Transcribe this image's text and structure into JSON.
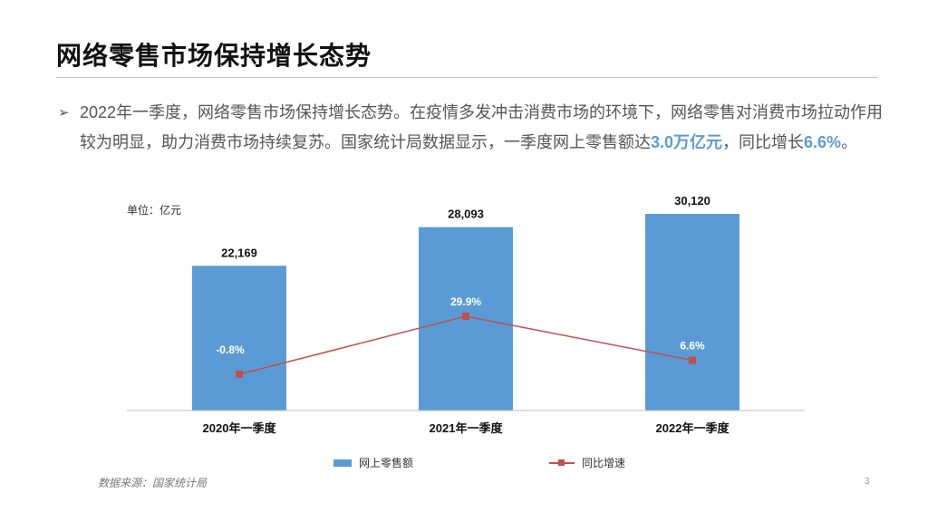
{
  "slide": {
    "title": "网络零售市场保持增长态势",
    "bullet_marker": "➢",
    "bullet_part1": "2022年一季度，网络零售市场保持增长态势。在疫情多发冲击消费市场的环境下，网络零售对消费市场拉动作用较为明显，助力消费市场持续复苏。国家统计局数据显示，一季度网上零售额达",
    "highlight1": "3.0万亿元",
    "bullet_part2": "，同比增长",
    "highlight2": "6.6%",
    "bullet_part3": "。",
    "source": "数据来源：国家统计局",
    "page_number": "3",
    "highlight_color": "#5b9bd5"
  },
  "chart_data": {
    "type": "bar",
    "unit_label": "单位：亿元",
    "categories": [
      "2020年一季度",
      "2021年一季度",
      "2022年一季度"
    ],
    "series": [
      {
        "name": "网上零售额",
        "type": "bar",
        "color": "#5b9bd5",
        "values": [
          22169,
          28093,
          30120
        ],
        "labels": [
          "22,169",
          "28,093",
          "30,120"
        ]
      },
      {
        "name": "同比增速",
        "type": "line",
        "color": "#c0504d",
        "values": [
          -0.8,
          29.9,
          6.6
        ],
        "labels": [
          "-0.8%",
          "29.9%",
          "6.6%"
        ]
      }
    ],
    "legend_position": "bottom",
    "grid": false
  }
}
